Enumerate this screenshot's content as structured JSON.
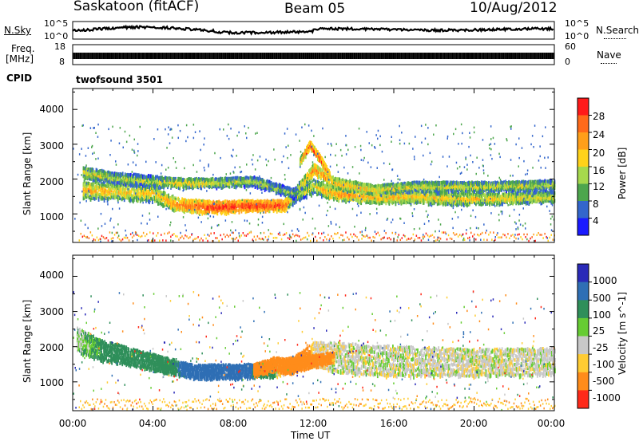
{
  "header": {
    "station": "Saskatoon (fitACF)",
    "beam": "Beam 05",
    "date": "10/Aug/2012"
  },
  "status_panels": {
    "nsky_label": "N.Sky",
    "nsky_ticks": [
      "10^5",
      "10^0"
    ],
    "nsearch_label": "N.Search",
    "nsearch_ticks": [
      "10^5",
      "10^0"
    ],
    "freq_label": "Freq.",
    "freq_unit": "[MHz]",
    "freq_ticks": [
      "18",
      "8"
    ],
    "nave_label": "Nave",
    "nave_ticks": [
      "60",
      "0"
    ],
    "cpid_label": "CPID",
    "cpid_value": "twofsound 3501"
  },
  "power_panel": {
    "ylabel": "Slant Range [km]",
    "yticks": [
      "4000",
      "3000",
      "2000",
      "1000"
    ],
    "colorbar_label": "Power [dB]",
    "colorbar_ticks": [
      "28",
      "24",
      "20",
      "16",
      "12",
      "8",
      "4"
    ],
    "colors": [
      "#ff1a1a",
      "#ff6a1a",
      "#ff9f1a",
      "#ffd21a",
      "#a6d94d",
      "#4da64d",
      "#3366cc",
      "#1a1aff"
    ]
  },
  "velocity_panel": {
    "ylabel": "Slant Range [km]",
    "yticks": [
      "4000",
      "3000",
      "2000",
      "1000"
    ],
    "colorbar_label": "Velocity [m s^-1]",
    "colorbar_ticks": [
      "1000",
      "500",
      "100",
      "25",
      "-25",
      "-100",
      "-500",
      "-1000"
    ],
    "colors": [
      "#2a2ab8",
      "#2f6fb5",
      "#2f8f5a",
      "#66cc33",
      "#c8c8c8",
      "#ffcc33",
      "#ff8c1a",
      "#ff2a1a"
    ]
  },
  "xaxis": {
    "label": "Time UT",
    "ticks": [
      "00:00",
      "04:00",
      "08:00",
      "12:00",
      "16:00",
      "20:00",
      "00:00"
    ]
  },
  "chart_data": [
    {
      "type": "heatmap",
      "title": "Power",
      "ylabel": "Slant Range [km]",
      "xlabel": "Time UT",
      "x_range_hours": [
        0,
        24
      ],
      "ylim": [
        180,
        4600
      ],
      "colorbar_label": "Power [dB]",
      "colorbar_ticks": [
        28,
        24,
        20,
        16,
        12,
        8,
        4
      ],
      "bands": [
        {
          "name": "",
          "t": [
            0.5,
            2,
            4,
            5,
            7,
            9,
            10.5,
            11,
            12,
            13,
            15,
            17,
            19,
            21,
            24
          ],
          "range_km": [
            1700,
            1650,
            1600,
            1300,
            1200,
            1250,
            1250,
            1500,
            1800,
            1600,
            1500,
            1500,
            1450,
            1450,
            1500
          ],
          "width_km": [
            500,
            450,
            450,
            350,
            350,
            300,
            300,
            350,
            400,
            350,
            350,
            350,
            350,
            300,
            300
          ],
          "power_db": [
            20,
            18,
            18,
            22,
            28,
            28,
            28,
            14,
            16,
            22,
            20,
            18,
            18,
            18,
            16
          ]
        },
        {
          "name": "",
          "t": [
            0.5,
            2,
            4,
            5,
            7,
            9,
            11,
            12,
            13,
            15,
            17,
            19,
            21,
            24
          ],
          "range_km": [
            2200,
            2050,
            1950,
            1900,
            1900,
            1950,
            1600,
            2300,
            1900,
            1700,
            1800,
            1800,
            1800,
            1850
          ],
          "width_km": [
            300,
            300,
            300,
            250,
            250,
            250,
            250,
            300,
            300,
            250,
            250,
            250,
            250,
            250
          ],
          "power_db": [
            18,
            14,
            14,
            18,
            16,
            14,
            12,
            24,
            20,
            18,
            16,
            16,
            16,
            14
          ]
        },
        {
          "name": "",
          "t": [
            11.3,
            11.8,
            12.3,
            12.8
          ],
          "range_km": [
            2500,
            3000,
            2600,
            2100
          ],
          "width_km": [
            200,
            200,
            200,
            200
          ],
          "power_db": [
            20,
            26,
            26,
            22
          ]
        }
      ]
    },
    {
      "type": "heatmap",
      "title": "Velocity",
      "ylabel": "Slant Range [km]",
      "xlabel": "Time UT",
      "x_range_hours": [
        0,
        24
      ],
      "ylim": [
        180,
        4600
      ],
      "colorbar_label": "Velocity [m s^-1]",
      "colorbar_ticks": [
        1000,
        500,
        100,
        25,
        -25,
        -100,
        -500,
        -1000
      ],
      "bands": [
        {
          "name": "",
          "t": [
            0.2,
            1.5,
            3,
            4.5,
            6,
            8,
            10,
            11,
            12,
            13,
            16,
            20,
            24
          ],
          "range_km": [
            2200,
            1900,
            1700,
            1500,
            1300,
            1300,
            1350,
            1500,
            1800,
            1700,
            1600,
            1550,
            1600
          ],
          "width_km": [
            700,
            600,
            500,
            450,
            400,
            400,
            400,
            450,
            700,
            900,
            900,
            800,
            800
          ],
          "velocity_ms": [
            25,
            100,
            100,
            100,
            500,
            500,
            100,
            -500,
            -25,
            0,
            0,
            0,
            0
          ]
        },
        {
          "name": "",
          "t": [
            9,
            10,
            11,
            12,
            13
          ],
          "range_km": [
            1350,
            1500,
            1500,
            1600,
            1700
          ],
          "width_km": [
            350,
            400,
            400,
            350,
            300
          ],
          "velocity_ms": [
            -500,
            -500,
            -500,
            -500,
            -100
          ]
        }
      ]
    }
  ]
}
